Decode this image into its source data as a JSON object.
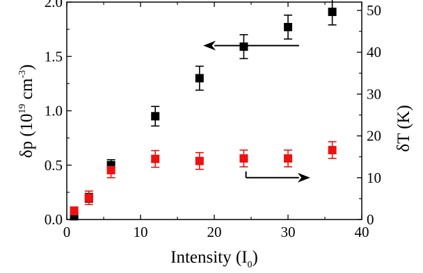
{
  "chart_data": {
    "type": "scatter",
    "xlabel": {
      "text": "Intensity (I",
      "sub": "0",
      "close": ")"
    },
    "ylabel_left": {
      "pre": "δp (10",
      "sup1": "19",
      "mid": " cm",
      "sup2": "-3",
      "post": ")"
    },
    "ylabel_right": "δT (K)",
    "xlim": [
      0,
      40
    ],
    "ylim_left": [
      0,
      2.0
    ],
    "ylim_right": [
      0,
      52
    ],
    "x_ticks": [
      "0",
      "10",
      "20",
      "30",
      "40"
    ],
    "y_left_ticks": [
      "0.0",
      "0.5",
      "1.0",
      "1.5",
      "2.0"
    ],
    "y_right_ticks": [
      "0",
      "10",
      "20",
      "30",
      "40",
      "50"
    ],
    "grid": false,
    "series": [
      {
        "axis": "left",
        "color": "#000000",
        "marker": "square",
        "x": [
          1,
          3,
          6,
          12,
          18,
          24,
          30,
          36
        ],
        "y": [
          0.03,
          0.2,
          0.5,
          0.95,
          1.3,
          1.59,
          1.77,
          1.91
        ],
        "yerr": [
          0.02,
          0.04,
          0.05,
          0.09,
          0.11,
          0.11,
          0.11,
          0.12
        ]
      },
      {
        "axis": "right",
        "color": "#ee1111",
        "marker": "square",
        "x": [
          1,
          3,
          6,
          12,
          18,
          24,
          30,
          36
        ],
        "y": [
          2.0,
          5.2,
          11.8,
          14.5,
          14.0,
          14.6,
          14.6,
          16.6
        ],
        "yerr": [
          1.0,
          1.6,
          1.8,
          2.0,
          2.0,
          2.0,
          2.0,
          2.0
        ]
      }
    ],
    "annotations": [
      {
        "type": "arrow",
        "direction": "left",
        "x_from": 31.5,
        "x_to": 18.5,
        "y": 1.6,
        "axis": "left",
        "meaning": "series on left axis"
      },
      {
        "type": "arrow",
        "direction": "right",
        "x_from": 24.3,
        "x_to": 33.0,
        "y": 10.0,
        "axis": "right",
        "meaning": "series on right axis"
      }
    ]
  }
}
